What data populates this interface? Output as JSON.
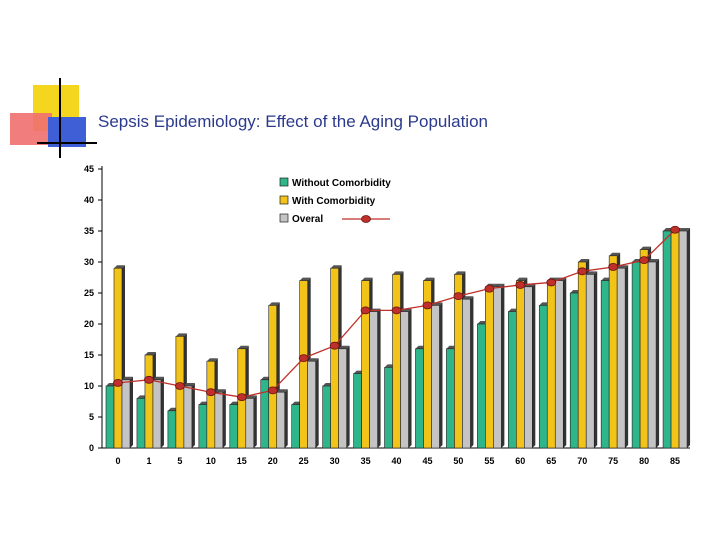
{
  "slide": {
    "title": "Sepsis Epidemiology: Effect of the Aging Population"
  },
  "colors": {
    "title": "#2b3a8c",
    "without": "#2fb58a",
    "with": "#f2c318",
    "overall": "#c4c4c4",
    "line": "#c0302a",
    "deco_yellow": "#f5d61e",
    "deco_red": "#f06f6f",
    "deco_blue": "#3f5fd6"
  },
  "chart_data": {
    "type": "bar",
    "categories": [
      "0",
      "1",
      "5",
      "10",
      "15",
      "20",
      "25",
      "30",
      "35",
      "40",
      "45",
      "50",
      "55",
      "60",
      "65",
      "70",
      "75",
      "80",
      "85"
    ],
    "series": [
      {
        "name": "Without Comorbidity",
        "values": [
          10,
          8,
          6,
          7,
          7,
          11,
          7,
          10,
          12,
          13,
          16,
          16,
          20,
          22,
          23,
          25,
          27,
          30,
          35
        ]
      },
      {
        "name": "With Comorbidity",
        "values": [
          29,
          15,
          18,
          14,
          16,
          23,
          27,
          29,
          27,
          28,
          27,
          28,
          26,
          27,
          27,
          30,
          31,
          32,
          35
        ]
      },
      {
        "name": "Overal",
        "values": [
          11,
          11,
          10,
          9,
          8,
          9,
          14,
          16,
          22,
          22,
          23,
          24,
          26,
          26,
          27,
          28,
          29,
          30,
          35
        ]
      }
    ],
    "line_series": {
      "name": "Overal",
      "values": [
        10.5,
        11,
        10,
        9,
        8.2,
        9.3,
        14.5,
        16.5,
        22.2,
        22.2,
        23,
        24.5,
        25.7,
        26.3,
        26.7,
        28.5,
        29.2,
        30.3,
        35.2
      ]
    },
    "ylim": [
      0,
      45
    ],
    "yticks": [
      0,
      5,
      10,
      15,
      20,
      25,
      30,
      35,
      40,
      45
    ],
    "legend": {
      "position": "top-right",
      "entries": [
        "Without Comorbidity",
        "With Comorbidity",
        "Overal"
      ]
    },
    "grid": false
  }
}
